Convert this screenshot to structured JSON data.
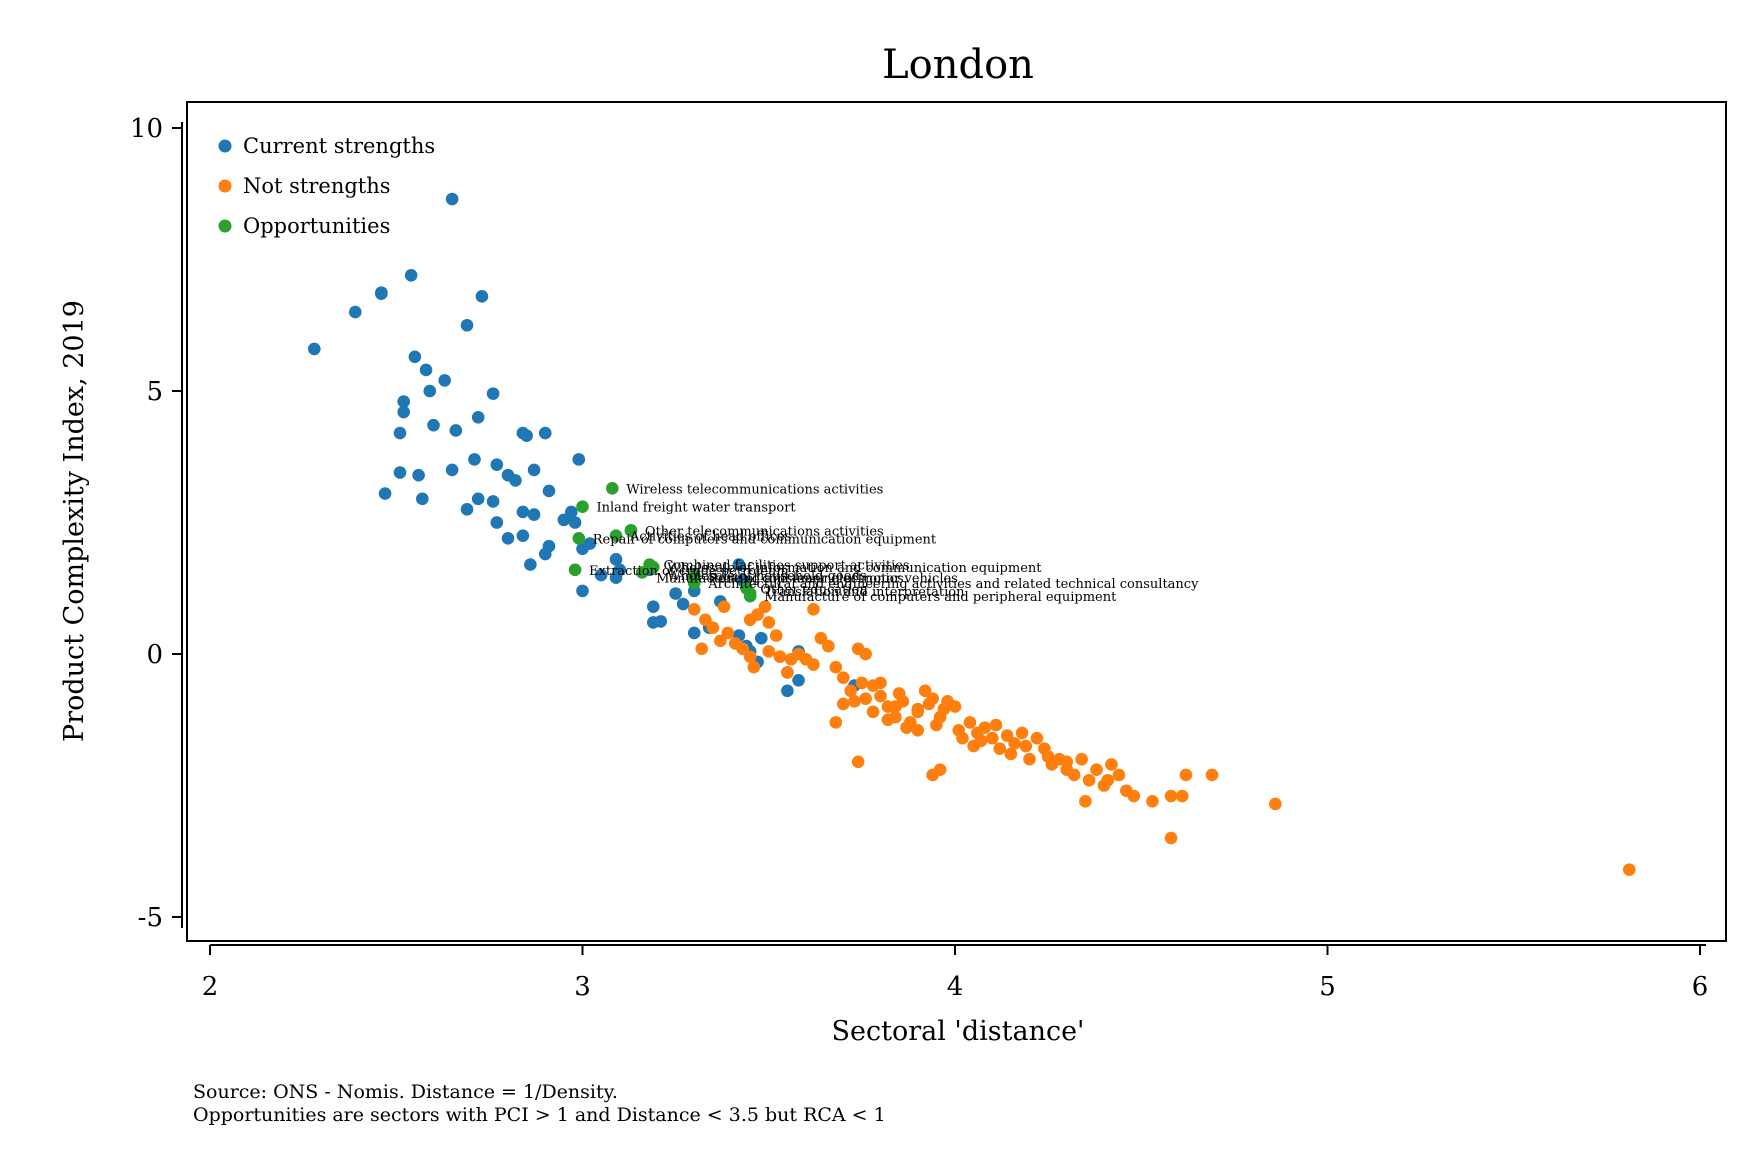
{
  "colors": {
    "current": "#1f77b4",
    "not_strength": "#ff7f0e",
    "opportunity": "#2ca02c",
    "axis": "#000000",
    "background": "#ffffff"
  },
  "notes": [
    "Source: ONS - Nomis. Distance = 1/Density.",
    "Opportunities are sectors with PCI > 1 and Distance < 3.5 but RCA < 1"
  ],
  "chart_data": {
    "type": "scatter",
    "title": "London",
    "xlabel": "Sectoral 'distance'",
    "ylabel": "Product Complexity Index, 2019",
    "xlim": [
      1.94,
      6.07
    ],
    "ylim": [
      -5.5,
      10.4
    ],
    "xticks": [
      2,
      3,
      4,
      5,
      6
    ],
    "yticks": [
      -5,
      0,
      5,
      10
    ],
    "grid": false,
    "legend_position": "top-left",
    "series": [
      {
        "name": "Current strengths",
        "color_key": "current",
        "points": [
          [
            2.65,
            8.65
          ],
          [
            2.28,
            5.8
          ],
          [
            2.39,
            6.5
          ],
          [
            2.46,
            6.87
          ],
          [
            2.46,
            6.85
          ],
          [
            2.54,
            7.2
          ],
          [
            2.73,
            6.8
          ],
          [
            2.69,
            6.25
          ],
          [
            2.55,
            5.65
          ],
          [
            2.58,
            5.4
          ],
          [
            2.63,
            5.2
          ],
          [
            2.59,
            5.0
          ],
          [
            2.52,
            4.8
          ],
          [
            2.52,
            4.6
          ],
          [
            2.51,
            4.2
          ],
          [
            2.6,
            4.35
          ],
          [
            2.66,
            4.25
          ],
          [
            2.72,
            4.5
          ],
          [
            2.76,
            4.95
          ],
          [
            2.84,
            4.2
          ],
          [
            2.85,
            4.15
          ],
          [
            2.9,
            4.2
          ],
          [
            2.51,
            3.45
          ],
          [
            2.56,
            3.4
          ],
          [
            2.65,
            3.5
          ],
          [
            2.71,
            3.7
          ],
          [
            2.77,
            3.6
          ],
          [
            2.8,
            3.4
          ],
          [
            2.82,
            3.3
          ],
          [
            2.87,
            3.5
          ],
          [
            2.91,
            3.1
          ],
          [
            2.99,
            3.7
          ],
          [
            2.47,
            3.05
          ],
          [
            2.57,
            2.95
          ],
          [
            2.72,
            2.95
          ],
          [
            2.76,
            2.9
          ],
          [
            2.69,
            2.75
          ],
          [
            2.77,
            2.5
          ],
          [
            2.84,
            2.7
          ],
          [
            2.87,
            2.65
          ],
          [
            2.95,
            2.55
          ],
          [
            2.97,
            2.7
          ],
          [
            2.98,
            2.5
          ],
          [
            2.8,
            2.2
          ],
          [
            2.84,
            2.25
          ],
          [
            2.91,
            2.05
          ],
          [
            2.9,
            1.9
          ],
          [
            2.86,
            1.7
          ],
          [
            3.0,
            2.0
          ],
          [
            3.02,
            2.1
          ],
          [
            3.0,
            1.2
          ],
          [
            3.05,
            1.5
          ],
          [
            3.09,
            1.8
          ],
          [
            3.1,
            1.6
          ],
          [
            3.09,
            1.45
          ],
          [
            3.13,
            2.35
          ],
          [
            3.18,
            1.6
          ],
          [
            3.25,
            1.15
          ],
          [
            3.27,
            0.95
          ],
          [
            3.3,
            1.2
          ],
          [
            3.19,
            0.9
          ],
          [
            3.19,
            0.6
          ],
          [
            3.21,
            0.62
          ],
          [
            3.3,
            0.4
          ],
          [
            3.34,
            0.5
          ],
          [
            3.37,
            1.0
          ],
          [
            3.42,
            0.35
          ],
          [
            3.44,
            0.15
          ],
          [
            3.45,
            0.05
          ],
          [
            3.48,
            0.3
          ],
          [
            3.42,
            1.7
          ],
          [
            3.43,
            1.4
          ],
          [
            3.55,
            -0.35
          ],
          [
            3.58,
            -0.5
          ],
          [
            3.55,
            -0.7
          ],
          [
            3.58,
            0.05
          ],
          [
            3.47,
            -0.15
          ],
          [
            3.73,
            -0.6
          ]
        ]
      },
      {
        "name": "Not strengths",
        "color_key": "not_strength",
        "points": [
          [
            3.3,
            0.85
          ],
          [
            3.33,
            0.65
          ],
          [
            3.35,
            0.5
          ],
          [
            3.37,
            0.25
          ],
          [
            3.32,
            0.1
          ],
          [
            3.41,
            0.2
          ],
          [
            3.43,
            0.1
          ],
          [
            3.45,
            -0.05
          ],
          [
            3.46,
            -0.25
          ],
          [
            3.45,
            0.65
          ],
          [
            3.47,
            0.75
          ],
          [
            3.5,
            0.6
          ],
          [
            3.52,
            0.35
          ],
          [
            3.5,
            0.05
          ],
          [
            3.53,
            -0.05
          ],
          [
            3.55,
            -0.35
          ],
          [
            3.58,
            0.0
          ],
          [
            3.6,
            -0.1
          ],
          [
            3.62,
            -0.2
          ],
          [
            3.64,
            0.3
          ],
          [
            3.66,
            0.15
          ],
          [
            3.68,
            -0.25
          ],
          [
            3.7,
            -0.45
          ],
          [
            3.72,
            -0.7
          ],
          [
            3.74,
            0.1
          ],
          [
            3.76,
            0.0
          ],
          [
            3.73,
            -0.9
          ],
          [
            3.76,
            -0.85
          ],
          [
            3.78,
            -0.6
          ],
          [
            3.8,
            -0.8
          ],
          [
            3.82,
            -1.0
          ],
          [
            3.84,
            -1.2
          ],
          [
            3.86,
            -0.9
          ],
          [
            3.88,
            -1.3
          ],
          [
            3.9,
            -1.1
          ],
          [
            3.92,
            -0.7
          ],
          [
            3.94,
            -0.85
          ],
          [
            3.96,
            -1.2
          ],
          [
            3.98,
            -0.9
          ],
          [
            4.0,
            -1.0
          ],
          [
            4.02,
            -1.6
          ],
          [
            4.04,
            -1.3
          ],
          [
            4.06,
            -1.5
          ],
          [
            4.08,
            -1.4
          ],
          [
            4.1,
            -1.6
          ],
          [
            4.12,
            -1.8
          ],
          [
            4.14,
            -1.55
          ],
          [
            4.16,
            -1.7
          ],
          [
            4.18,
            -1.5
          ],
          [
            4.2,
            -2.0
          ],
          [
            4.22,
            -1.6
          ],
          [
            4.24,
            -1.8
          ],
          [
            4.26,
            -2.1
          ],
          [
            4.28,
            -2.0
          ],
          [
            4.3,
            -2.2
          ],
          [
            4.32,
            -2.3
          ],
          [
            4.34,
            -2.0
          ],
          [
            4.36,
            -2.4
          ],
          [
            4.38,
            -2.2
          ],
          [
            4.4,
            -2.5
          ],
          [
            4.42,
            -2.1
          ],
          [
            4.44,
            -2.3
          ],
          [
            4.46,
            -2.6
          ],
          [
            4.48,
            -2.7
          ],
          [
            4.35,
            -2.8
          ],
          [
            4.53,
            -2.8
          ],
          [
            4.58,
            -2.7
          ],
          [
            4.61,
            -2.7
          ],
          [
            4.62,
            -2.3
          ],
          [
            4.69,
            -2.3
          ],
          [
            4.58,
            -3.5
          ],
          [
            4.86,
            -2.85
          ],
          [
            3.74,
            -2.05
          ],
          [
            3.94,
            -2.3
          ],
          [
            3.96,
            -2.2
          ],
          [
            3.68,
            -1.3
          ],
          [
            3.62,
            0.85
          ],
          [
            3.49,
            0.9
          ],
          [
            3.38,
            0.9
          ],
          [
            3.39,
            0.4
          ],
          [
            5.81,
            -4.1
          ],
          [
            3.56,
            -0.1
          ],
          [
            3.85,
            -0.75
          ],
          [
            3.9,
            -1.05
          ],
          [
            3.95,
            -1.35
          ],
          [
            4.05,
            -1.75
          ],
          [
            4.15,
            -1.9
          ],
          [
            4.25,
            -1.95
          ],
          [
            3.78,
            -1.1
          ],
          [
            3.82,
            -1.25
          ],
          [
            3.87,
            -1.4
          ],
          [
            3.93,
            -0.95
          ],
          [
            3.97,
            -1.05
          ],
          [
            4.01,
            -1.45
          ],
          [
            4.07,
            -1.65
          ],
          [
            4.11,
            -1.35
          ],
          [
            3.7,
            -0.95
          ],
          [
            3.75,
            -0.55
          ],
          [
            3.8,
            -0.55
          ],
          [
            3.84,
            -1.0
          ],
          [
            3.9,
            -1.45
          ],
          [
            4.19,
            -1.75
          ],
          [
            4.3,
            -2.05
          ],
          [
            4.41,
            -2.4
          ]
        ]
      },
      {
        "name": "Opportunities",
        "color_key": "opportunity",
        "points": [
          [
            3.08,
            3.15
          ],
          [
            3.0,
            2.8
          ],
          [
            3.13,
            2.35
          ],
          [
            3.09,
            2.25
          ],
          [
            2.99,
            2.2
          ],
          [
            3.18,
            1.7
          ],
          [
            3.19,
            1.65
          ],
          [
            3.16,
            1.55
          ],
          [
            2.98,
            1.6
          ],
          [
            3.3,
            1.5
          ],
          [
            3.3,
            1.45
          ],
          [
            3.3,
            1.35
          ],
          [
            3.44,
            1.25
          ],
          [
            3.45,
            1.15
          ],
          [
            3.45,
            1.1
          ]
        ]
      }
    ],
    "labels": [
      {
        "text": "Wireless telecommunications activities",
        "x": 3.08,
        "y": 3.15
      },
      {
        "text": "Inland freight water transport",
        "x": 3.0,
        "y": 2.8
      },
      {
        "text": "Other telecommunications activities",
        "x": 3.13,
        "y": 2.35
      },
      {
        "text": "Activities of head offices",
        "x": 3.09,
        "y": 2.25
      },
      {
        "text": "Repair of computers and communication equipment",
        "x": 2.99,
        "y": 2.2
      },
      {
        "text": "Combined facilities support activities",
        "x": 3.18,
        "y": 1.7
      },
      {
        "text": "Wholesale of information and communication equipment",
        "x": 3.19,
        "y": 1.65
      },
      {
        "text": "Wholesale of household goods",
        "x": 3.19,
        "y": 1.5
      },
      {
        "text": "Extraction of crude petroleum",
        "x": 2.98,
        "y": 1.6
      },
      {
        "text": "Manufacture of consumer electronics",
        "x": 3.16,
        "y": 1.45
      },
      {
        "text": "Renting and leasing of motor vehicles",
        "x": 3.3,
        "y": 1.45
      },
      {
        "text": "Architectural and engineering activities and related technical consultancy",
        "x": 3.3,
        "y": 1.35
      },
      {
        "text": "Manufacture of computers and peripheral equipment",
        "x": 3.45,
        "y": 1.1
      },
      {
        "text": "Other education",
        "x": 3.44,
        "y": 1.25
      },
      {
        "text": "Translation and interpretation",
        "x": 3.45,
        "y": 1.2
      }
    ]
  }
}
